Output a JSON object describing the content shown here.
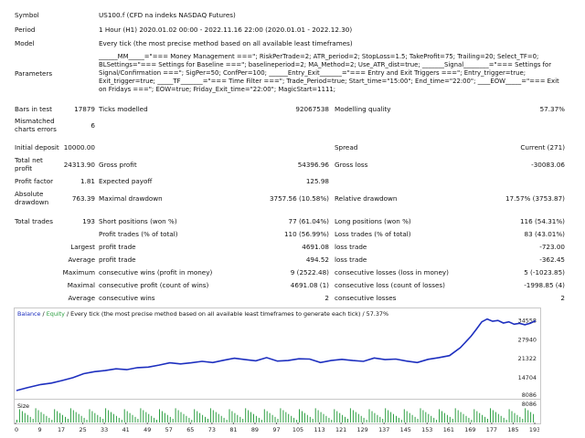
{
  "report": {
    "symbol_label": "Symbol",
    "symbol_value": "US100.f (CFD na indeks NASDAQ Futures)",
    "period_label": "Period",
    "period_value": "1 Hour (H1) 2020.01.02 00:00 - 2022.11.16 22:00 (2020.01.01 - 2022.12.30)",
    "model_label": "Model",
    "model_value": "Every tick (the most precise method based on all available least timeframes)",
    "parameters_label": "Parameters",
    "parameters_value": "______MM_____=\"=== Money Management ===\"; RiskPerTrade=2; ATR_period=2; StopLoss=1.5; TakeProfit=75; Trailing=20; Select_TF=0; BLSettings=\"=== Settings for Baseline ===\"; baselineperiod=2; MA_Method=2; Use_ATR_dist=true; _______Signal________=\"=== Settings for Signal/Confirmation ===\"; SigPer=50; ConfPer=100; ______Entry_Exit_______=\"=== Entry and Exit Triggers ===\"; Entry_trigger=true; Exit_trigger=true; _____TF_______=\"=== Time Filter ===\"; Trade_Period=true; Start_time=\"15:00\"; End_time=\"22:00\"; ____EOW_____=\"=== Exit on Fridays ===\"; EOW=true; Friday_Exit_time=\"22:00\"; MagicStart=1111;",
    "bars_label": "Bars in test",
    "bars_value": "17879",
    "ticks_label": "Ticks modelled",
    "ticks_value": "92067538",
    "quality_label": "Modelling quality",
    "quality_value": "57.37%",
    "mismatch_label": "Mismatched charts errors",
    "mismatch_value": "6",
    "deposit_label": "Initial deposit",
    "deposit_value": "10000.00",
    "spread_label": "Spread",
    "spread_value": "Current (271)",
    "netprofit_label": "Total net profit",
    "netprofit_value": "24313.90",
    "grossprofit_label": "Gross profit",
    "grossprofit_value": "54396.96",
    "grossloss_label": "Gross loss",
    "grossloss_value": "-30083.06",
    "pf_label": "Profit factor",
    "pf_value": "1.81",
    "payoff_label": "Expected payoff",
    "payoff_value": "125.98",
    "absdd_label": "Absolute drawdown",
    "absdd_value": "763.39",
    "maxdd_label": "Maximal drawdown",
    "maxdd_value": "3757.56 (10.58%)",
    "reldd_label": "Relative drawdown",
    "reldd_value": "17.57% (3753.87)",
    "trades_label": "Total trades",
    "trades_value": "193",
    "short_label": "Short positions (won %)",
    "short_value": "77 (61.04%)",
    "long_label": "Long positions (won %)",
    "long_value": "116 (54.31%)",
    "ptrades_label": "Profit trades (% of total)",
    "ptrades_value": "110 (56.99%)",
    "ltrades_label": "Loss trades (% of total)",
    "ltrades_value": "83 (43.01%)",
    "largest_label": "Largest",
    "largest_profit_label": "profit trade",
    "largest_profit_value": "4691.08",
    "largest_loss_label": "loss trade",
    "largest_loss_value": "-723.00",
    "average_label": "Average",
    "average_profit_label": "profit trade",
    "average_profit_value": "494.52",
    "average_loss_label": "loss trade",
    "average_loss_value": "-362.45",
    "maximum_label": "Maximum",
    "max_wins_label": "consecutive wins (profit in money)",
    "max_wins_value": "9 (2522.48)",
    "max_losses_label": "consecutive losses (loss in money)",
    "max_losses_value": "5 (-1023.85)",
    "maximal_label": "Maximal",
    "maximal_profit_label": "consecutive profit (count of wins)",
    "maximal_profit_value": "4691.08 (1)",
    "maximal_loss_label": "consecutive loss (count of losses)",
    "maximal_loss_value": "-1998.85 (4)",
    "avg2_label": "Average",
    "avg_wins_label": "consecutive wins",
    "avg_wins_value": "2",
    "avg_losses_label": "consecutive losses",
    "avg_losses_value": "2"
  },
  "chart": {
    "header_balance": "Balance",
    "header_sep": " / ",
    "header_equity": "Equity",
    "header_rest": " / Every tick (the most precise method based on all available least timeframes to generate each tick) / 57.37%",
    "size_label": "Size",
    "balance_color": "#1d2fbf",
    "equity_color": "#2ea043"
  },
  "chart_data": {
    "type": "line",
    "y_ticks": [
      "34558",
      "27940",
      "21322",
      "14704",
      "8086"
    ],
    "ylim": [
      8086,
      34558
    ],
    "x_ticks": [
      "0",
      "9",
      "17",
      "25",
      "33",
      "41",
      "49",
      "57",
      "65",
      "73",
      "81",
      "89",
      "97",
      "105",
      "113",
      "121",
      "129",
      "137",
      "145",
      "153",
      "161",
      "169",
      "177",
      "185",
      "193"
    ],
    "series": [
      {
        "name": "Balance",
        "x": [
          0,
          4,
          9,
          13,
          17,
          21,
          25,
          29,
          33,
          37,
          41,
          45,
          49,
          53,
          57,
          61,
          65,
          69,
          73,
          77,
          81,
          85,
          89,
          93,
          97,
          101,
          105,
          109,
          113,
          117,
          121,
          125,
          129,
          133,
          137,
          141,
          145,
          149,
          153,
          157,
          161,
          165,
          169,
          171,
          173,
          175,
          177,
          179,
          181,
          183,
          185,
          187,
          189,
          191,
          193
        ],
        "values": [
          10000,
          11000,
          12100,
          12600,
          13500,
          14500,
          15900,
          16600,
          17000,
          17600,
          17300,
          18000,
          18200,
          18900,
          19700,
          19300,
          19700,
          20200,
          19800,
          20600,
          21300,
          20800,
          20400,
          21500,
          20300,
          20500,
          21100,
          21000,
          19800,
          20500,
          20900,
          20500,
          20200,
          21400,
          20800,
          21000,
          20300,
          19800,
          20900,
          21500,
          22200,
          25000,
          29000,
          31500,
          34000,
          35000,
          34200,
          34500,
          33600,
          34000,
          33200,
          33500,
          33000,
          33500,
          34400
        ]
      }
    ],
    "volume_bars": 193
  }
}
